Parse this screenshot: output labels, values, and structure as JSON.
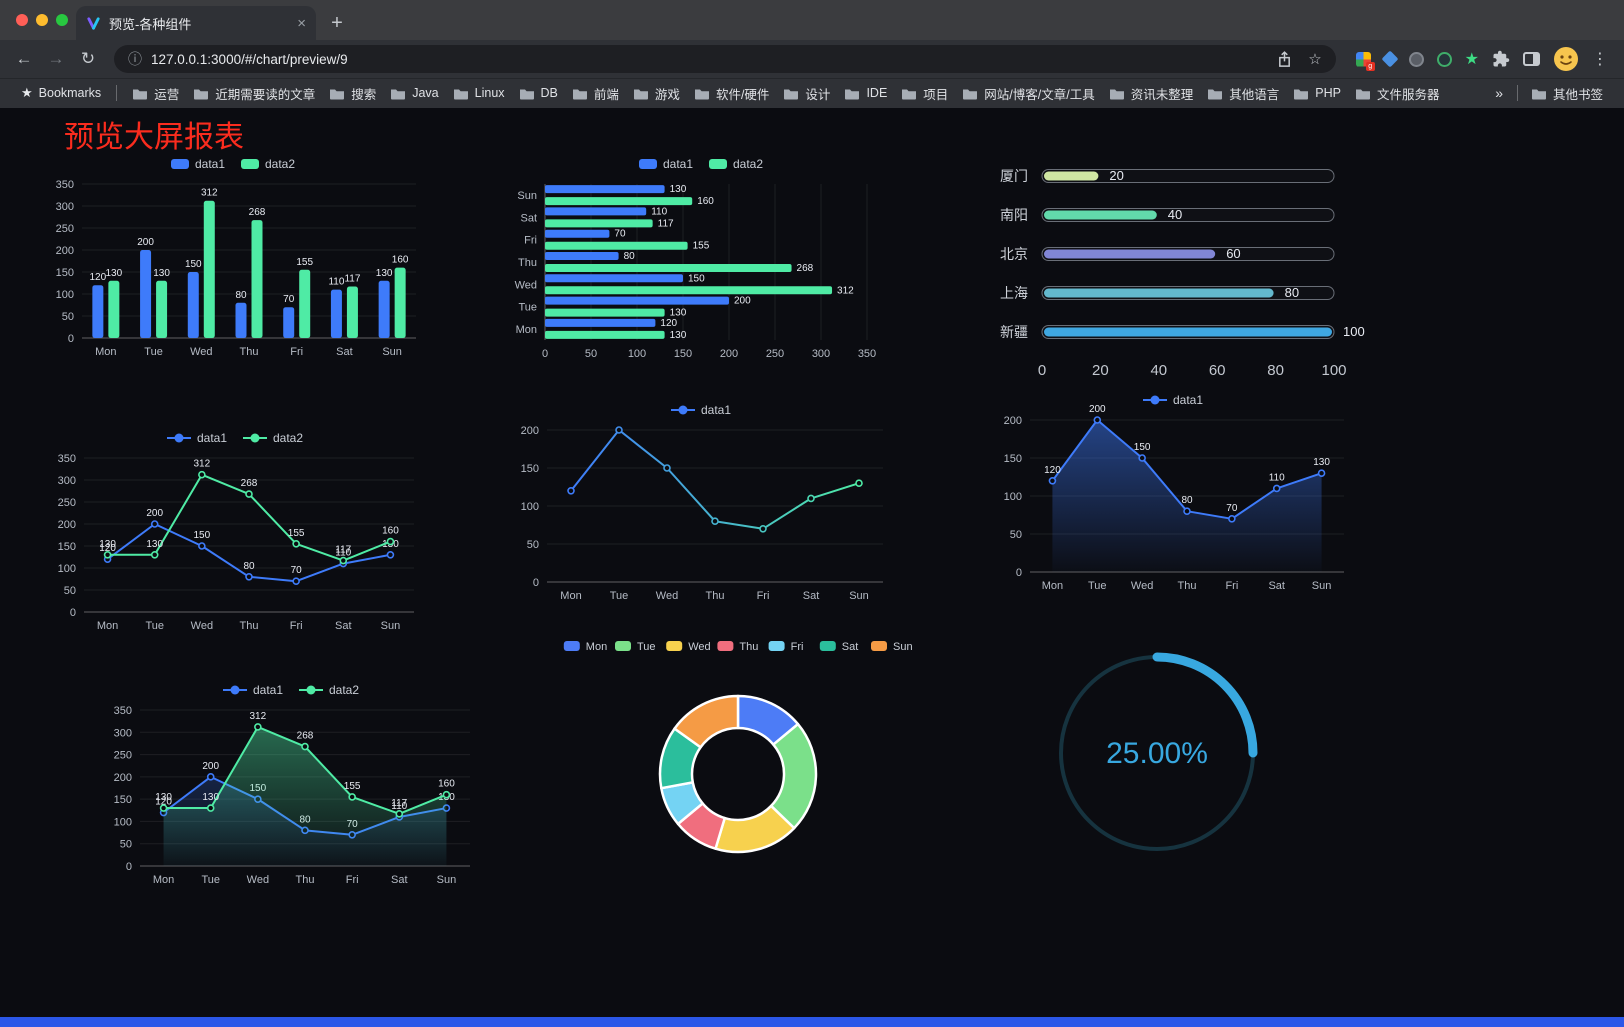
{
  "browser": {
    "tab": {
      "title": "预览-各种组件",
      "close": "×"
    },
    "new_tab": "+",
    "nav": {
      "back": "←",
      "forward": "→",
      "reload": "↻"
    },
    "url": "127.0.0.1:3000/#/chart/preview/9",
    "info_icon": "ⓘ",
    "bookmark_star": "☆",
    "menu_kebab": "⋮",
    "ext_star": "★",
    "bookmarks_bar": {
      "star": "★",
      "label": "Bookmarks",
      "items": [
        "运营",
        "近期需要读的文章",
        "搜索",
        "Java",
        "Linux",
        "DB",
        "前端",
        "游戏",
        "软件/硬件",
        "设计",
        "IDE",
        "项目",
        "网站/博客/文章/工具",
        "资讯未整理",
        "其他语言",
        "PHP",
        "文件服务器"
      ],
      "overflow": "»",
      "other": "其他书签"
    }
  },
  "page": {
    "title": "预览大屏报表",
    "title_color": "#fb2c1e",
    "footer_color": "#2b57e8"
  },
  "theme": {
    "axis_text": "#b6bcc6",
    "legend_text": "#c9ced6",
    "value_label": "#e8ebf2",
    "grid": "rgba(255,255,255,0.08)",
    "axis_line": "rgba(255,255,255,0.35)",
    "page_bg": "#0b0c11",
    "blue": "#3E7BFA",
    "green": "#4FEBA5"
  },
  "chart_data": [
    {
      "id": "grouped-bar",
      "type": "bar",
      "categories": [
        "Mon",
        "Tue",
        "Wed",
        "Thu",
        "Fri",
        "Sat",
        "Sun"
      ],
      "series": [
        {
          "name": "data1",
          "color": "#3E7BFA",
          "values": [
            120,
            200,
            150,
            80,
            70,
            110,
            130
          ]
        },
        {
          "name": "data2",
          "color": "#4FEBA5",
          "values": [
            130,
            130,
            312,
            268,
            155,
            117,
            160
          ]
        }
      ],
      "ylim": [
        0,
        350
      ],
      "ytick": 50,
      "show_labels": true
    },
    {
      "id": "horizontal-bar",
      "type": "hbar",
      "categories": [
        "Mon",
        "Tue",
        "Wed",
        "Thu",
        "Fri",
        "Sat",
        "Sun"
      ],
      "series": [
        {
          "name": "data1",
          "color": "#3E7BFA",
          "values": [
            120,
            200,
            150,
            80,
            70,
            110,
            130
          ]
        },
        {
          "name": "data2",
          "color": "#4FEBA5",
          "values": [
            130,
            130,
            312,
            268,
            155,
            117,
            160
          ]
        }
      ],
      "xlim": [
        0,
        350
      ],
      "xtick": 50,
      "show_labels": true
    },
    {
      "id": "progress-bars",
      "type": "progress",
      "max": 100,
      "xticks": [
        0,
        20,
        40,
        60,
        80,
        100
      ],
      "items": [
        {
          "label": "厦门",
          "value": 20,
          "color": "#cfe6a3"
        },
        {
          "label": "南阳",
          "value": 40,
          "color": "#62d9ab"
        },
        {
          "label": "北京",
          "value": 60,
          "color": "#8186d5"
        },
        {
          "label": "上海",
          "value": 80,
          "color": "#63b8cd"
        },
        {
          "label": "新疆",
          "value": 100,
          "color": "#3fa7e1"
        }
      ]
    },
    {
      "id": "line-two-series",
      "type": "line",
      "categories": [
        "Mon",
        "Tue",
        "Wed",
        "Thu",
        "Fri",
        "Sat",
        "Sun"
      ],
      "series": [
        {
          "name": "data1",
          "color": "#3E7BFA",
          "values": [
            120,
            200,
            150,
            80,
            70,
            110,
            130
          ],
          "labels": true
        },
        {
          "name": "data2",
          "color": "#4FEBA5",
          "values": [
            130,
            130,
            312,
            268,
            155,
            117,
            160
          ],
          "labels": true
        }
      ],
      "ylim": [
        0,
        350
      ],
      "ytick": 50
    },
    {
      "id": "line-gradient",
      "type": "line",
      "categories": [
        "Mon",
        "Tue",
        "Wed",
        "Thu",
        "Fri",
        "Sat",
        "Sun"
      ],
      "series": [
        {
          "name": "data1",
          "gradient": [
            "#3E7BFA",
            "#4FEBA5"
          ],
          "values": [
            120,
            200,
            150,
            80,
            70,
            110,
            130
          ],
          "labels": false
        }
      ],
      "ylim": [
        0,
        200
      ],
      "ytick": 50
    },
    {
      "id": "line-area-single",
      "type": "line",
      "categories": [
        "Mon",
        "Tue",
        "Wed",
        "Thu",
        "Fri",
        "Sat",
        "Sun"
      ],
      "series": [
        {
          "name": "data1",
          "color": "#3E7BFA",
          "values": [
            120,
            200,
            150,
            80,
            70,
            110,
            130
          ],
          "labels": true,
          "area": true,
          "area_opacity": 0.5
        }
      ],
      "ylim": [
        0,
        200
      ],
      "ytick": 50
    },
    {
      "id": "line-area-two-series",
      "type": "line",
      "categories": [
        "Mon",
        "Tue",
        "Wed",
        "Thu",
        "Fri",
        "Sat",
        "Sun"
      ],
      "series": [
        {
          "name": "data1",
          "color": "#3E7BFA",
          "values": [
            120,
            200,
            150,
            80,
            70,
            110,
            130
          ],
          "labels": true,
          "area": true,
          "area_opacity": 0.22
        },
        {
          "name": "data2",
          "color": "#4FEBA5",
          "values": [
            130,
            130,
            312,
            268,
            155,
            117,
            160
          ],
          "labels": true,
          "area": true,
          "area_opacity": 0.42
        }
      ],
      "ylim": [
        0,
        350
      ],
      "ytick": 50
    },
    {
      "id": "donut",
      "type": "donut",
      "categories": [
        "Mon",
        "Tue",
        "Wed",
        "Thu",
        "Fri",
        "Sat",
        "Sun"
      ],
      "values": [
        120,
        200,
        150,
        80,
        70,
        110,
        130
      ],
      "colors": [
        "#4d7cf6",
        "#7be08a",
        "#f7d14e",
        "#f06e7e",
        "#74d3f3",
        "#2bbe9c",
        "#f59b45"
      ]
    },
    {
      "id": "gauge",
      "type": "gauge",
      "value": 25,
      "display": "25.00%",
      "color": "#38a8e0",
      "track_color": "#16333f"
    }
  ]
}
